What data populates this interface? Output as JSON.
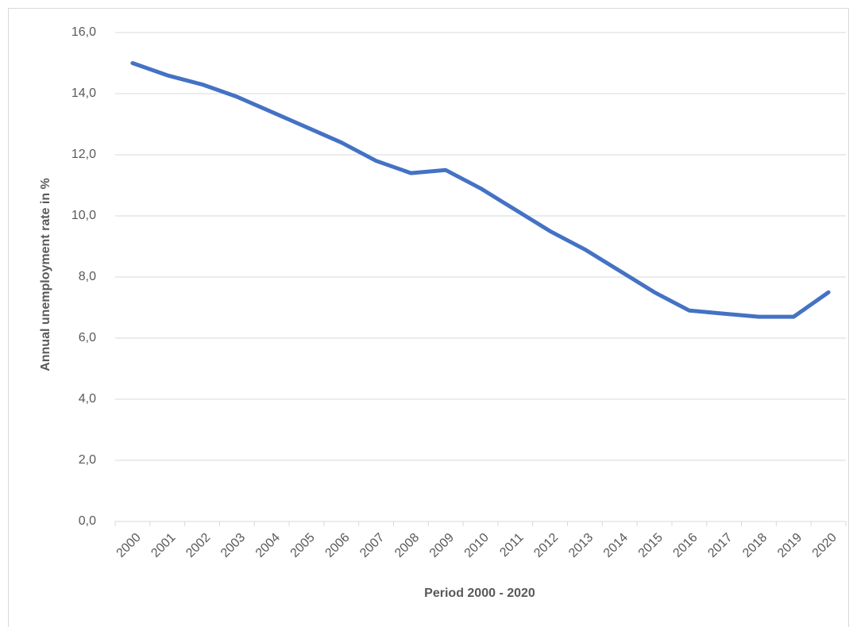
{
  "chart_data": {
    "type": "line",
    "x_label": "Period 2000 - 2020",
    "y_label": "Annual unemployment rate in %",
    "categories": [
      "2000",
      "2001",
      "2002",
      "2003",
      "2004",
      "2005",
      "2006",
      "2007",
      "2008",
      "2009",
      "2010",
      "2011",
      "2012",
      "2013",
      "2014",
      "2015",
      "2016",
      "2017",
      "2018",
      "2019",
      "2020"
    ],
    "values": [
      15.0,
      14.6,
      14.3,
      13.9,
      13.4,
      12.9,
      12.4,
      11.8,
      11.4,
      11.5,
      10.9,
      10.2,
      9.5,
      8.9,
      8.2,
      7.5,
      6.9,
      6.8,
      6.7,
      6.7,
      7.5
    ],
    "color": "#4472c4",
    "ylim": [
      0,
      16
    ],
    "yticks": [
      {
        "value": 0,
        "label": "0,0"
      },
      {
        "value": 2,
        "label": "2,0"
      },
      {
        "value": 4,
        "label": "4,0"
      },
      {
        "value": 6,
        "label": "6,0"
      },
      {
        "value": 8,
        "label": "8,0"
      },
      {
        "value": 10,
        "label": "10,0"
      },
      {
        "value": 12,
        "label": "12,0"
      },
      {
        "value": 14,
        "label": "14,0"
      },
      {
        "value": 16,
        "label": "16,0"
      }
    ],
    "grid": true
  }
}
